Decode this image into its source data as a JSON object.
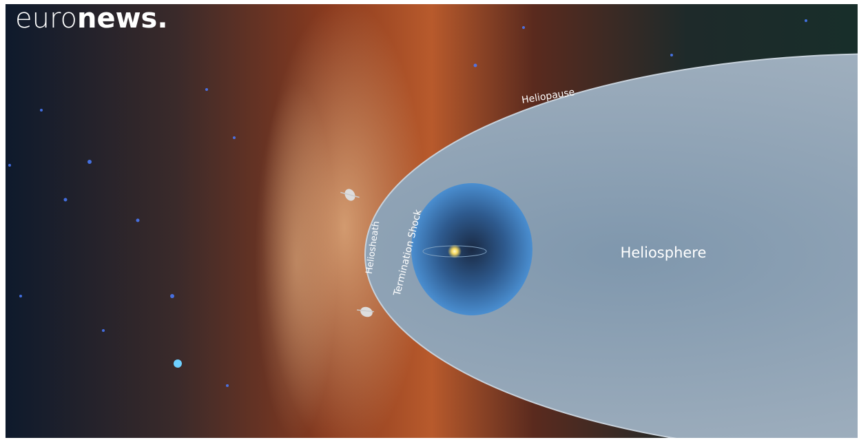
{
  "logo": {
    "light": "euro",
    "bold": "news."
  },
  "labels": {
    "heliopause": "Heliopause",
    "heliosheath": "Heliosheath",
    "termination_shock": "Termination Shock",
    "heliosphere": "Heliosphere"
  }
}
